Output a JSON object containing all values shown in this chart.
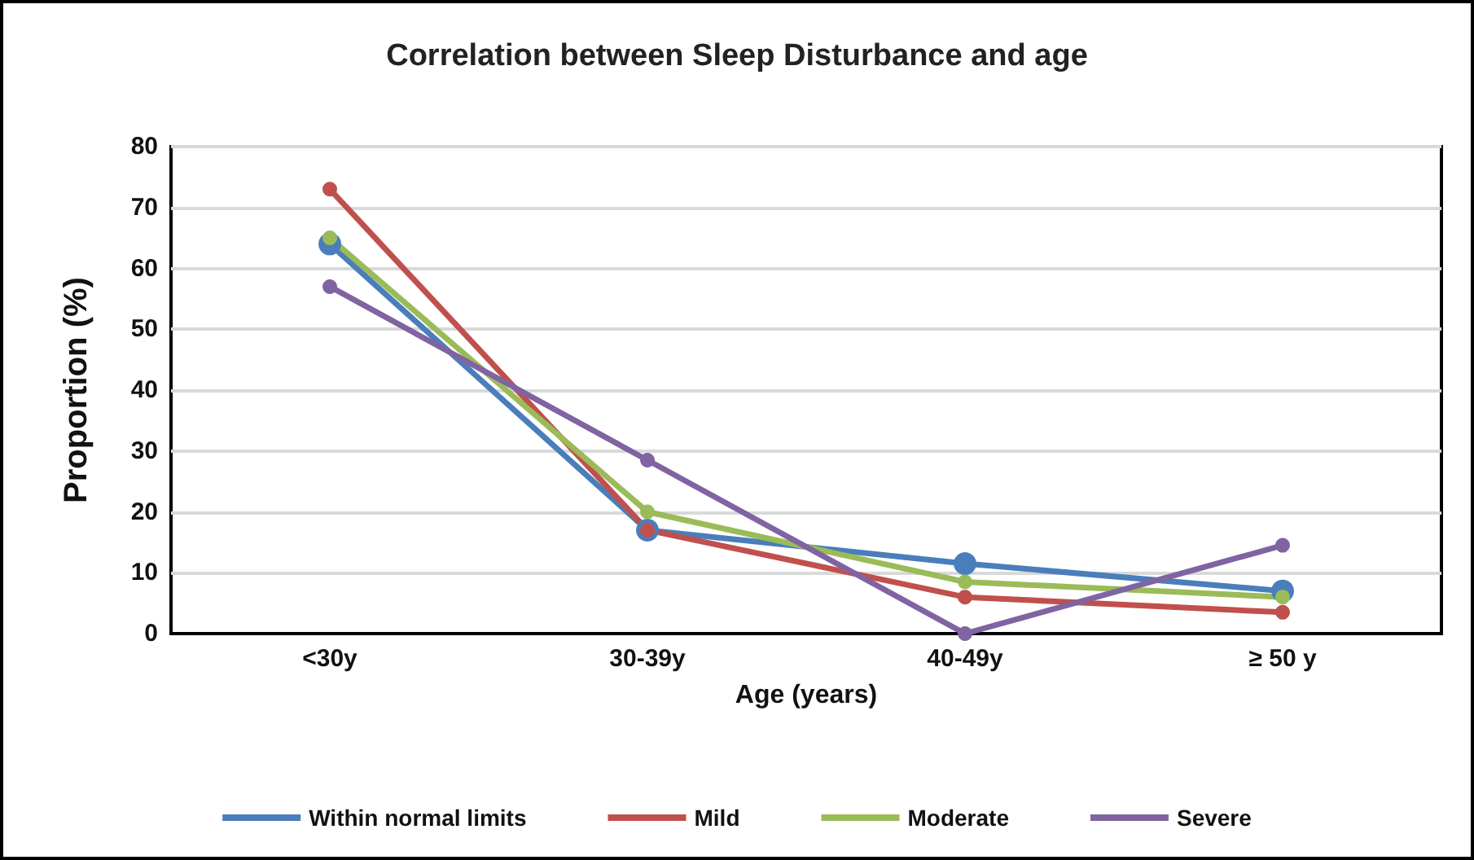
{
  "chart_data": {
    "type": "line",
    "title": "Correlation between Sleep Disturbance and age",
    "xlabel": "Age (years)",
    "ylabel": "Proportion (%)",
    "categories": [
      "<30y",
      "30-39y",
      "40-49y",
      "≥ 50 y"
    ],
    "series": [
      {
        "name": "Within normal limits",
        "color": "#4a7ebb",
        "values": [
          64,
          17,
          11.5,
          7
        ]
      },
      {
        "name": "Mild",
        "color": "#c0504d",
        "values": [
          73,
          17,
          6,
          3.5
        ]
      },
      {
        "name": "Moderate",
        "color": "#9bbb59",
        "values": [
          65,
          20,
          8.5,
          6
        ]
      },
      {
        "name": "Severe",
        "color": "#8064a2",
        "values": [
          57,
          28.5,
          0,
          14.5
        ]
      }
    ],
    "ylim": [
      0,
      80
    ],
    "yticks": [
      0,
      10,
      20,
      30,
      40,
      50,
      60,
      70,
      80
    ],
    "grid": "y",
    "legend": "bottom",
    "marker": "circle",
    "line_style": "solid"
  }
}
